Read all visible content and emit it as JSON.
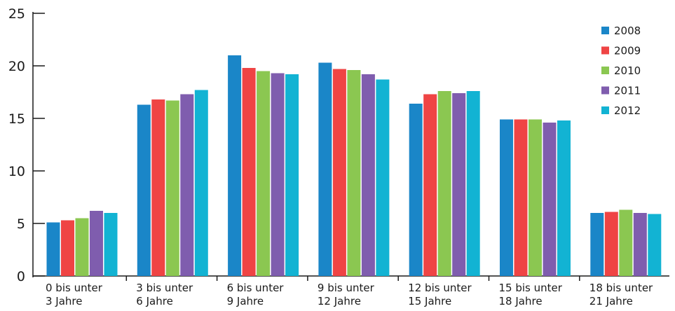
{
  "chart_data": {
    "type": "bar",
    "title": "",
    "xlabel": "",
    "ylabel": "",
    "ylim": [
      0,
      25
    ],
    "yticks": [
      0,
      5,
      10,
      15,
      20,
      25
    ],
    "grid": false,
    "legend_position": "top-right",
    "categories": [
      [
        "0 bis unter",
        "3 Jahre"
      ],
      [
        "3 bis unter",
        "6 Jahre"
      ],
      [
        "6 bis unter",
        "9 Jahre"
      ],
      [
        "9 bis unter",
        "12 Jahre"
      ],
      [
        "12 bis unter",
        "15 Jahre"
      ],
      [
        "15 bis unter",
        "18 Jahre"
      ],
      [
        "18 bis unter",
        "21 Jahre"
      ]
    ],
    "series": [
      {
        "name": "2008",
        "color": "#1a86c8",
        "values": [
          5.1,
          16.3,
          21.0,
          20.3,
          16.4,
          14.9,
          6.0
        ]
      },
      {
        "name": "2009",
        "color": "#ef4444",
        "values": [
          5.3,
          16.8,
          19.8,
          19.7,
          17.3,
          14.9,
          6.1
        ]
      },
      {
        "name": "2010",
        "color": "#8bc751",
        "values": [
          5.5,
          16.7,
          19.5,
          19.6,
          17.6,
          14.9,
          6.3
        ]
      },
      {
        "name": "2011",
        "color": "#7f5dae",
        "values": [
          6.2,
          17.3,
          19.3,
          19.2,
          17.4,
          14.6,
          6.0
        ]
      },
      {
        "name": "2012",
        "color": "#12b3d3",
        "values": [
          6.0,
          17.7,
          19.2,
          18.7,
          17.6,
          14.8,
          5.9
        ]
      }
    ]
  }
}
